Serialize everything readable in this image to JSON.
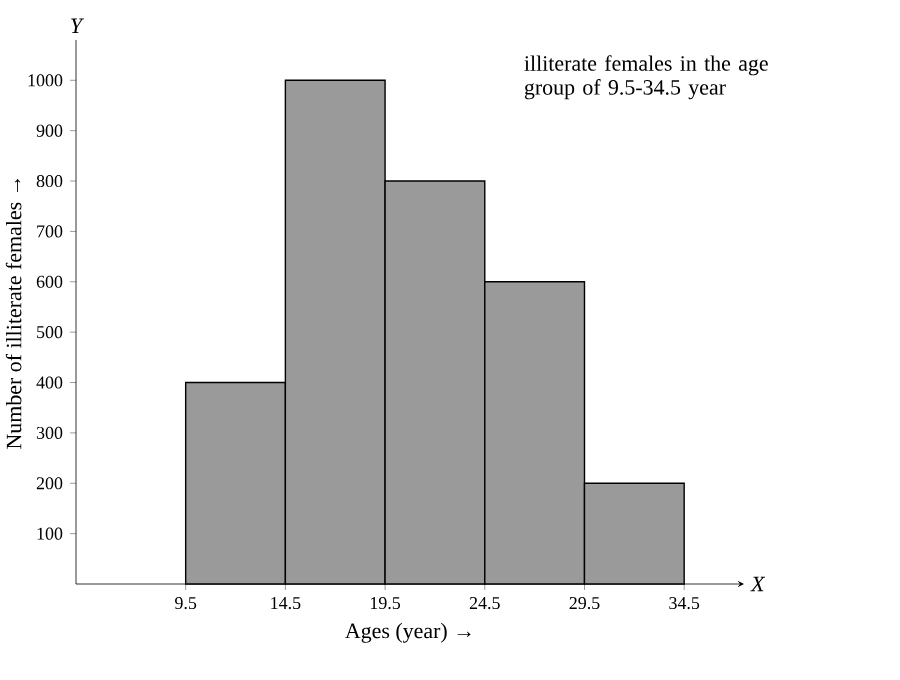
{
  "chart_data": {
    "type": "histogram",
    "xlabel": "Ages (year) →",
    "ylabel": "Number of illiterate females →",
    "bins": [
      9.5,
      14.5,
      19.5,
      24.5,
      29.5,
      34.5
    ],
    "values": [
      400,
      1000,
      800,
      600,
      200
    ],
    "color": "#9a9a9a",
    "xlim": [
      4,
      37.5
    ],
    "ylim": [
      0,
      1080
    ],
    "xticks": [
      9.5,
      14.5,
      19.5,
      24.5,
      29.5,
      34.5
    ],
    "yticks": [
      100,
      200,
      300,
      400,
      500,
      600,
      700,
      800,
      900,
      1000
    ],
    "grid": false,
    "annotations": [
      "illiterate females in the age group of 9.5-34.5 year",
      "Y",
      "X"
    ]
  }
}
